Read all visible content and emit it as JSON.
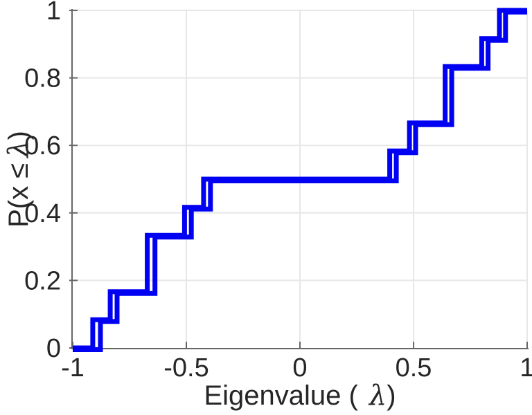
{
  "figure": {
    "background_color": "#ffffff"
  },
  "labels": {
    "xlabel_prefix": "Eigenvalue (",
    "xlabel_lambda": "λ",
    "xlabel_suffix": ")",
    "ylabel_prefix": "P(x ≤",
    "ylabel_lambda": "λ",
    "ylabel_suffix": ")"
  },
  "chart_data": {
    "type": "line",
    "subtype": "empirical-cdf-stairs",
    "title": "",
    "xlabel": "Eigenvalue ( λ)",
    "ylabel": "P(x ≤ λ)",
    "xlim": [
      -1,
      1
    ],
    "ylim": [
      0,
      1
    ],
    "grid": true,
    "legend": "none",
    "x_ticks": {
      "values": [
        -1,
        -0.5,
        0,
        0.5,
        1
      ],
      "labels": [
        "-1",
        "-0.5",
        "0",
        "0.5",
        "1"
      ]
    },
    "y_ticks": {
      "values": [
        0,
        0.2,
        0.4,
        0.6,
        0.8,
        1
      ],
      "labels": [
        "0",
        "0.2",
        "0.4",
        "0.6",
        "0.8",
        "1"
      ]
    },
    "line_color": "#0000F2",
    "grid_color": "#e7e7e7",
    "axis_color": "#666666",
    "tick_label_color": "#262626",
    "series": [
      {
        "name": "ecdf-curve-1",
        "eigenvalues": [
          -0.912,
          -0.835,
          -0.672,
          -0.672,
          -0.508,
          -0.424,
          0.395,
          0.482,
          0.639,
          0.639,
          0.8,
          0.878
        ],
        "steps": [
          {
            "x": -0.912,
            "p": 0.0833
          },
          {
            "x": -0.835,
            "p": 0.1667
          },
          {
            "x": -0.672,
            "p": 0.3333
          },
          {
            "x": -0.508,
            "p": 0.4167
          },
          {
            "x": -0.424,
            "p": 0.5
          },
          {
            "x": 0.395,
            "p": 0.5833
          },
          {
            "x": 0.482,
            "p": 0.6667
          },
          {
            "x": 0.639,
            "p": 0.8333
          },
          {
            "x": 0.8,
            "p": 0.9167
          },
          {
            "x": 0.878,
            "p": 1
          }
        ]
      },
      {
        "name": "ecdf-curve-2",
        "eigenvalues": [
          -0.878,
          -0.805,
          -0.638,
          -0.638,
          -0.478,
          -0.394,
          0.424,
          0.509,
          0.668,
          0.668,
          0.828,
          0.905
        ],
        "steps": [
          {
            "x": -0.878,
            "p": 0.0833
          },
          {
            "x": -0.805,
            "p": 0.1667
          },
          {
            "x": -0.638,
            "p": 0.3333
          },
          {
            "x": -0.478,
            "p": 0.4167
          },
          {
            "x": -0.394,
            "p": 0.5
          },
          {
            "x": 0.424,
            "p": 0.5833
          },
          {
            "x": 0.509,
            "p": 0.6667
          },
          {
            "x": 0.668,
            "p": 0.8333
          },
          {
            "x": 0.828,
            "p": 0.9167
          },
          {
            "x": 0.905,
            "p": 1
          }
        ]
      }
    ]
  }
}
